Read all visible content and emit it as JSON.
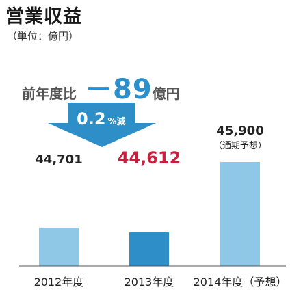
{
  "title": "営業収益",
  "unit_note": "（単位：億円）",
  "comparison": {
    "label": "前年度比",
    "value": "－89",
    "unit": "億円",
    "rate": "0.2",
    "rate_suffix": "%減"
  },
  "colors": {
    "bar_light": "#8fc8e6",
    "bar_highlight": "#2e8fc8",
    "arrow": "#2e8fc8",
    "highlight_label": "#c8203c",
    "cmp_value": "#2a8fca"
  },
  "chart_data": {
    "type": "bar",
    "categories": [
      "2012年度",
      "2013年度",
      "2014年度（予想）"
    ],
    "values": [
      44701,
      44612,
      45900
    ],
    "value_labels": [
      "44,701",
      "44,612",
      "45,900"
    ],
    "value_sublabels": [
      "",
      "",
      "（通期予想）"
    ],
    "highlight_index": 1,
    "ylim": [
      0,
      45900
    ],
    "title": "",
    "xlabel": "",
    "ylabel": "",
    "grid": false
  }
}
